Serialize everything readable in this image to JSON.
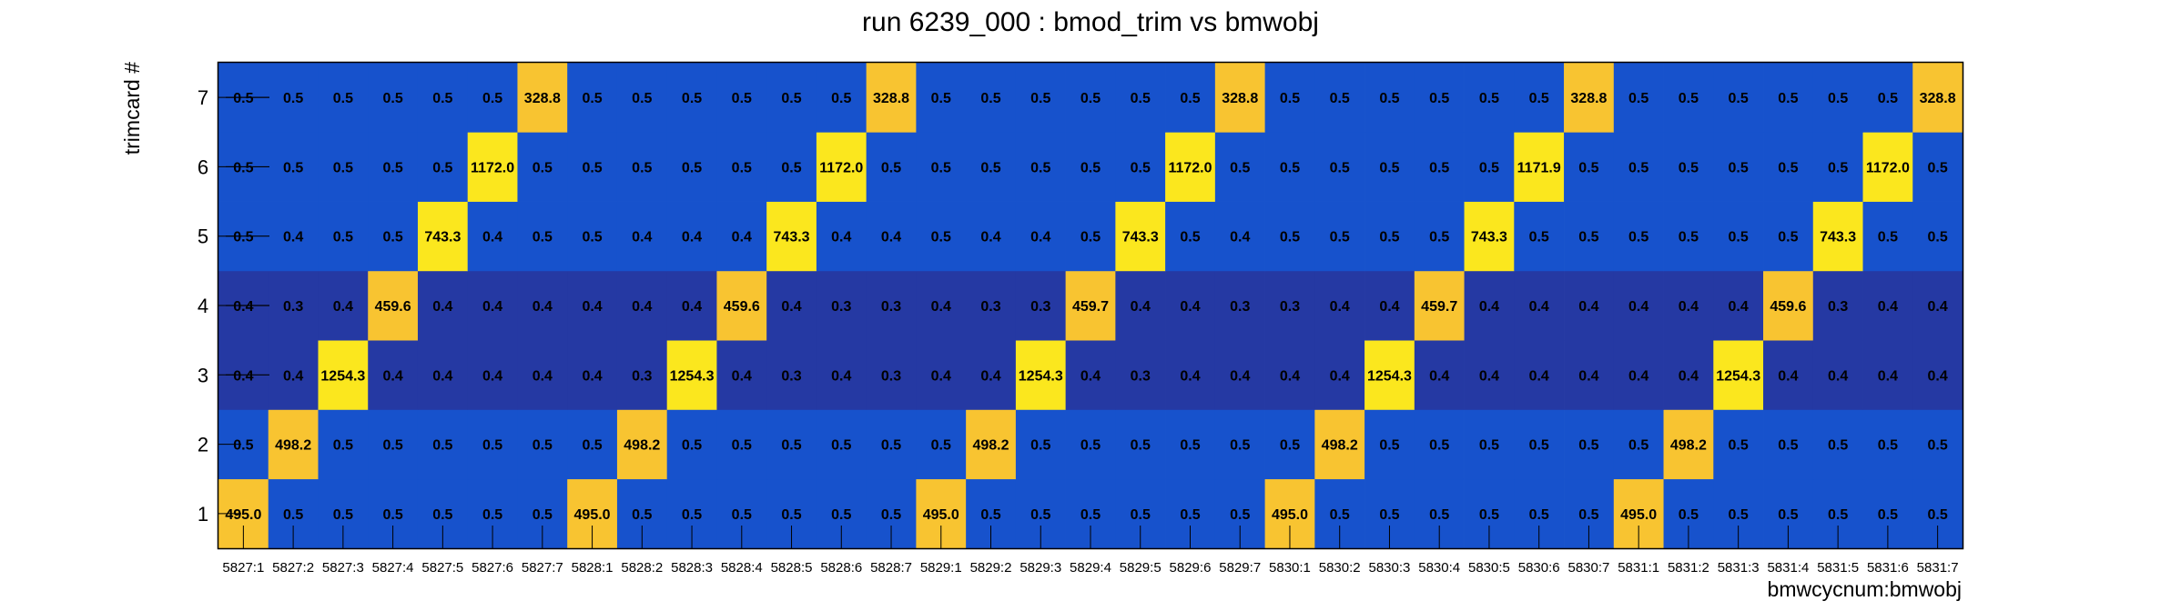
{
  "chart_data": {
    "type": "heatmap",
    "title": "run 6239_000 : bmod_trim vs bmwobj",
    "xlabel": "bmwcycnum:bmwobj",
    "ylabel": "trimcard #",
    "x_categories": [
      "5827:1",
      "5827:2",
      "5827:3",
      "5827:4",
      "5827:5",
      "5827:6",
      "5827:7",
      "5828:1",
      "5828:2",
      "5828:3",
      "5828:4",
      "5828:5",
      "5828:6",
      "5828:7",
      "5829:1",
      "5829:2",
      "5829:3",
      "5829:4",
      "5829:5",
      "5829:6",
      "5829:7",
      "5830:1",
      "5830:2",
      "5830:3",
      "5830:4",
      "5830:5",
      "5830:6",
      "5830:7",
      "5831:1",
      "5831:2",
      "5831:3",
      "5831:4",
      "5831:5",
      "5831:6",
      "5831:7"
    ],
    "y_categories": [
      "1",
      "2",
      "3",
      "4",
      "5",
      "6",
      "7"
    ],
    "values": [
      [
        "495.0",
        "0.5",
        "0.5",
        "0.5",
        "0.5",
        "0.5",
        "0.5",
        "495.0",
        "0.5",
        "0.5",
        "0.5",
        "0.5",
        "0.5",
        "0.5",
        "495.0",
        "0.5",
        "0.5",
        "0.5",
        "0.5",
        "0.5",
        "0.5",
        "495.0",
        "0.5",
        "0.5",
        "0.5",
        "0.5",
        "0.5",
        "0.5",
        "495.0",
        "0.5",
        "0.5",
        "0.5",
        "0.5",
        "0.5",
        "0.5"
      ],
      [
        "0.5",
        "498.2",
        "0.5",
        "0.5",
        "0.5",
        "0.5",
        "0.5",
        "0.5",
        "498.2",
        "0.5",
        "0.5",
        "0.5",
        "0.5",
        "0.5",
        "0.5",
        "498.2",
        "0.5",
        "0.5",
        "0.5",
        "0.5",
        "0.5",
        "0.5",
        "498.2",
        "0.5",
        "0.5",
        "0.5",
        "0.5",
        "0.5",
        "0.5",
        "498.2",
        "0.5",
        "0.5",
        "0.5",
        "0.5",
        "0.5"
      ],
      [
        "0.4",
        "0.4",
        "1254.3",
        "0.4",
        "0.4",
        "0.4",
        "0.4",
        "0.4",
        "0.3",
        "1254.3",
        "0.4",
        "0.3",
        "0.4",
        "0.3",
        "0.4",
        "0.4",
        "1254.3",
        "0.4",
        "0.3",
        "0.4",
        "0.4",
        "0.4",
        "0.4",
        "1254.3",
        "0.4",
        "0.4",
        "0.4",
        "0.4",
        "0.4",
        "0.4",
        "1254.3",
        "0.4",
        "0.4",
        "0.4",
        "0.4"
      ],
      [
        "0.4",
        "0.3",
        "0.4",
        "459.6",
        "0.4",
        "0.4",
        "0.4",
        "0.4",
        "0.4",
        "0.4",
        "459.6",
        "0.4",
        "0.3",
        "0.3",
        "0.4",
        "0.3",
        "0.3",
        "459.7",
        "0.4",
        "0.4",
        "0.3",
        "0.3",
        "0.4",
        "0.4",
        "459.7",
        "0.4",
        "0.4",
        "0.4",
        "0.4",
        "0.4",
        "0.4",
        "459.6",
        "0.3",
        "0.4",
        "0.4"
      ],
      [
        "0.5",
        "0.4",
        "0.5",
        "0.5",
        "743.3",
        "0.4",
        "0.5",
        "0.5",
        "0.4",
        "0.4",
        "0.4",
        "743.3",
        "0.4",
        "0.4",
        "0.5",
        "0.4",
        "0.4",
        "0.5",
        "743.3",
        "0.5",
        "0.4",
        "0.5",
        "0.5",
        "0.5",
        "0.5",
        "743.3",
        "0.5",
        "0.5",
        "0.5",
        "0.5",
        "0.5",
        "0.5",
        "743.3",
        "0.5",
        "0.5"
      ],
      [
        "0.5",
        "0.5",
        "0.5",
        "0.5",
        "0.5",
        "1172.0",
        "0.5",
        "0.5",
        "0.5",
        "0.5",
        "0.5",
        "0.5",
        "1172.0",
        "0.5",
        "0.5",
        "0.5",
        "0.5",
        "0.5",
        "0.5",
        "1172.0",
        "0.5",
        "0.5",
        "0.5",
        "0.5",
        "0.5",
        "0.5",
        "1171.9",
        "0.5",
        "0.5",
        "0.5",
        "0.5",
        "0.5",
        "0.5",
        "1172.0",
        "0.5"
      ],
      [
        "0.5",
        "0.5",
        "0.5",
        "0.5",
        "0.5",
        "0.5",
        "328.8",
        "0.5",
        "0.5",
        "0.5",
        "0.5",
        "0.5",
        "0.5",
        "328.8",
        "0.5",
        "0.5",
        "0.5",
        "0.5",
        "0.5",
        "0.5",
        "328.8",
        "0.5",
        "0.5",
        "0.5",
        "0.5",
        "0.5",
        "0.5",
        "328.8",
        "0.5",
        "0.5",
        "0.5",
        "0.5",
        "0.5",
        "0.5",
        "328.8"
      ]
    ],
    "colors": {
      "low_row_blue": "#1752cc",
      "mid_row_blue": "#2539a3",
      "peak_yellow": "#fbe71e",
      "peak_gold": "#f8c431",
      "axis": "#000000",
      "text": "#000000"
    }
  }
}
